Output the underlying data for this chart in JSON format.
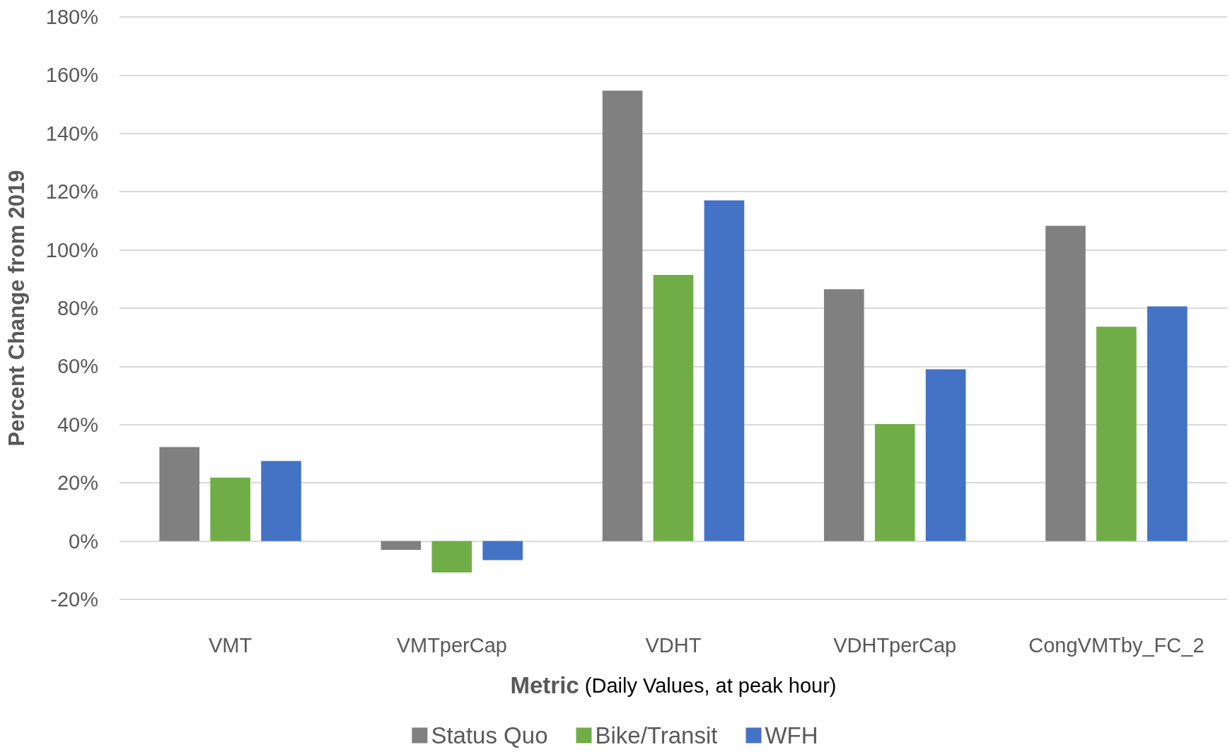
{
  "chart_data": {
    "type": "bar",
    "xlabel": "Metric (Daily Values, at peak hour)",
    "ylabel": "Percent Change from 2019",
    "categories": [
      "VMT",
      "VMTperCap",
      "VDHT",
      "VDHTperCap",
      "CongVMTby_FC_2"
    ],
    "series": [
      {
        "name": "Status Quo",
        "color": "#808080",
        "values": [
          32.3,
          -3,
          154.7,
          86.5,
          108.3
        ]
      },
      {
        "name": "Bike/Transit",
        "color": "#70ad47",
        "values": [
          21.8,
          -10.8,
          91.4,
          40.2,
          73.6
        ]
      },
      {
        "name": "WFH",
        "color": "#4472c4",
        "values": [
          27.5,
          -6.5,
          117,
          59,
          80.6
        ]
      }
    ],
    "ylim": [
      -20,
      180
    ],
    "yticks": [
      {
        "value": -20,
        "label": "-20%"
      },
      {
        "value": 0,
        "label": "0%"
      },
      {
        "value": 20,
        "label": "20%"
      },
      {
        "value": 40,
        "label": "40%"
      },
      {
        "value": 60,
        "label": "60%"
      },
      {
        "value": 80,
        "label": "80%"
      },
      {
        "value": 100,
        "label": "100%"
      },
      {
        "value": 120,
        "label": "120%"
      },
      {
        "value": 140,
        "label": "140%"
      },
      {
        "value": 160,
        "label": "160%"
      },
      {
        "value": 180,
        "label": "180%"
      }
    ],
    "grid": "y",
    "legend": "bottom"
  }
}
